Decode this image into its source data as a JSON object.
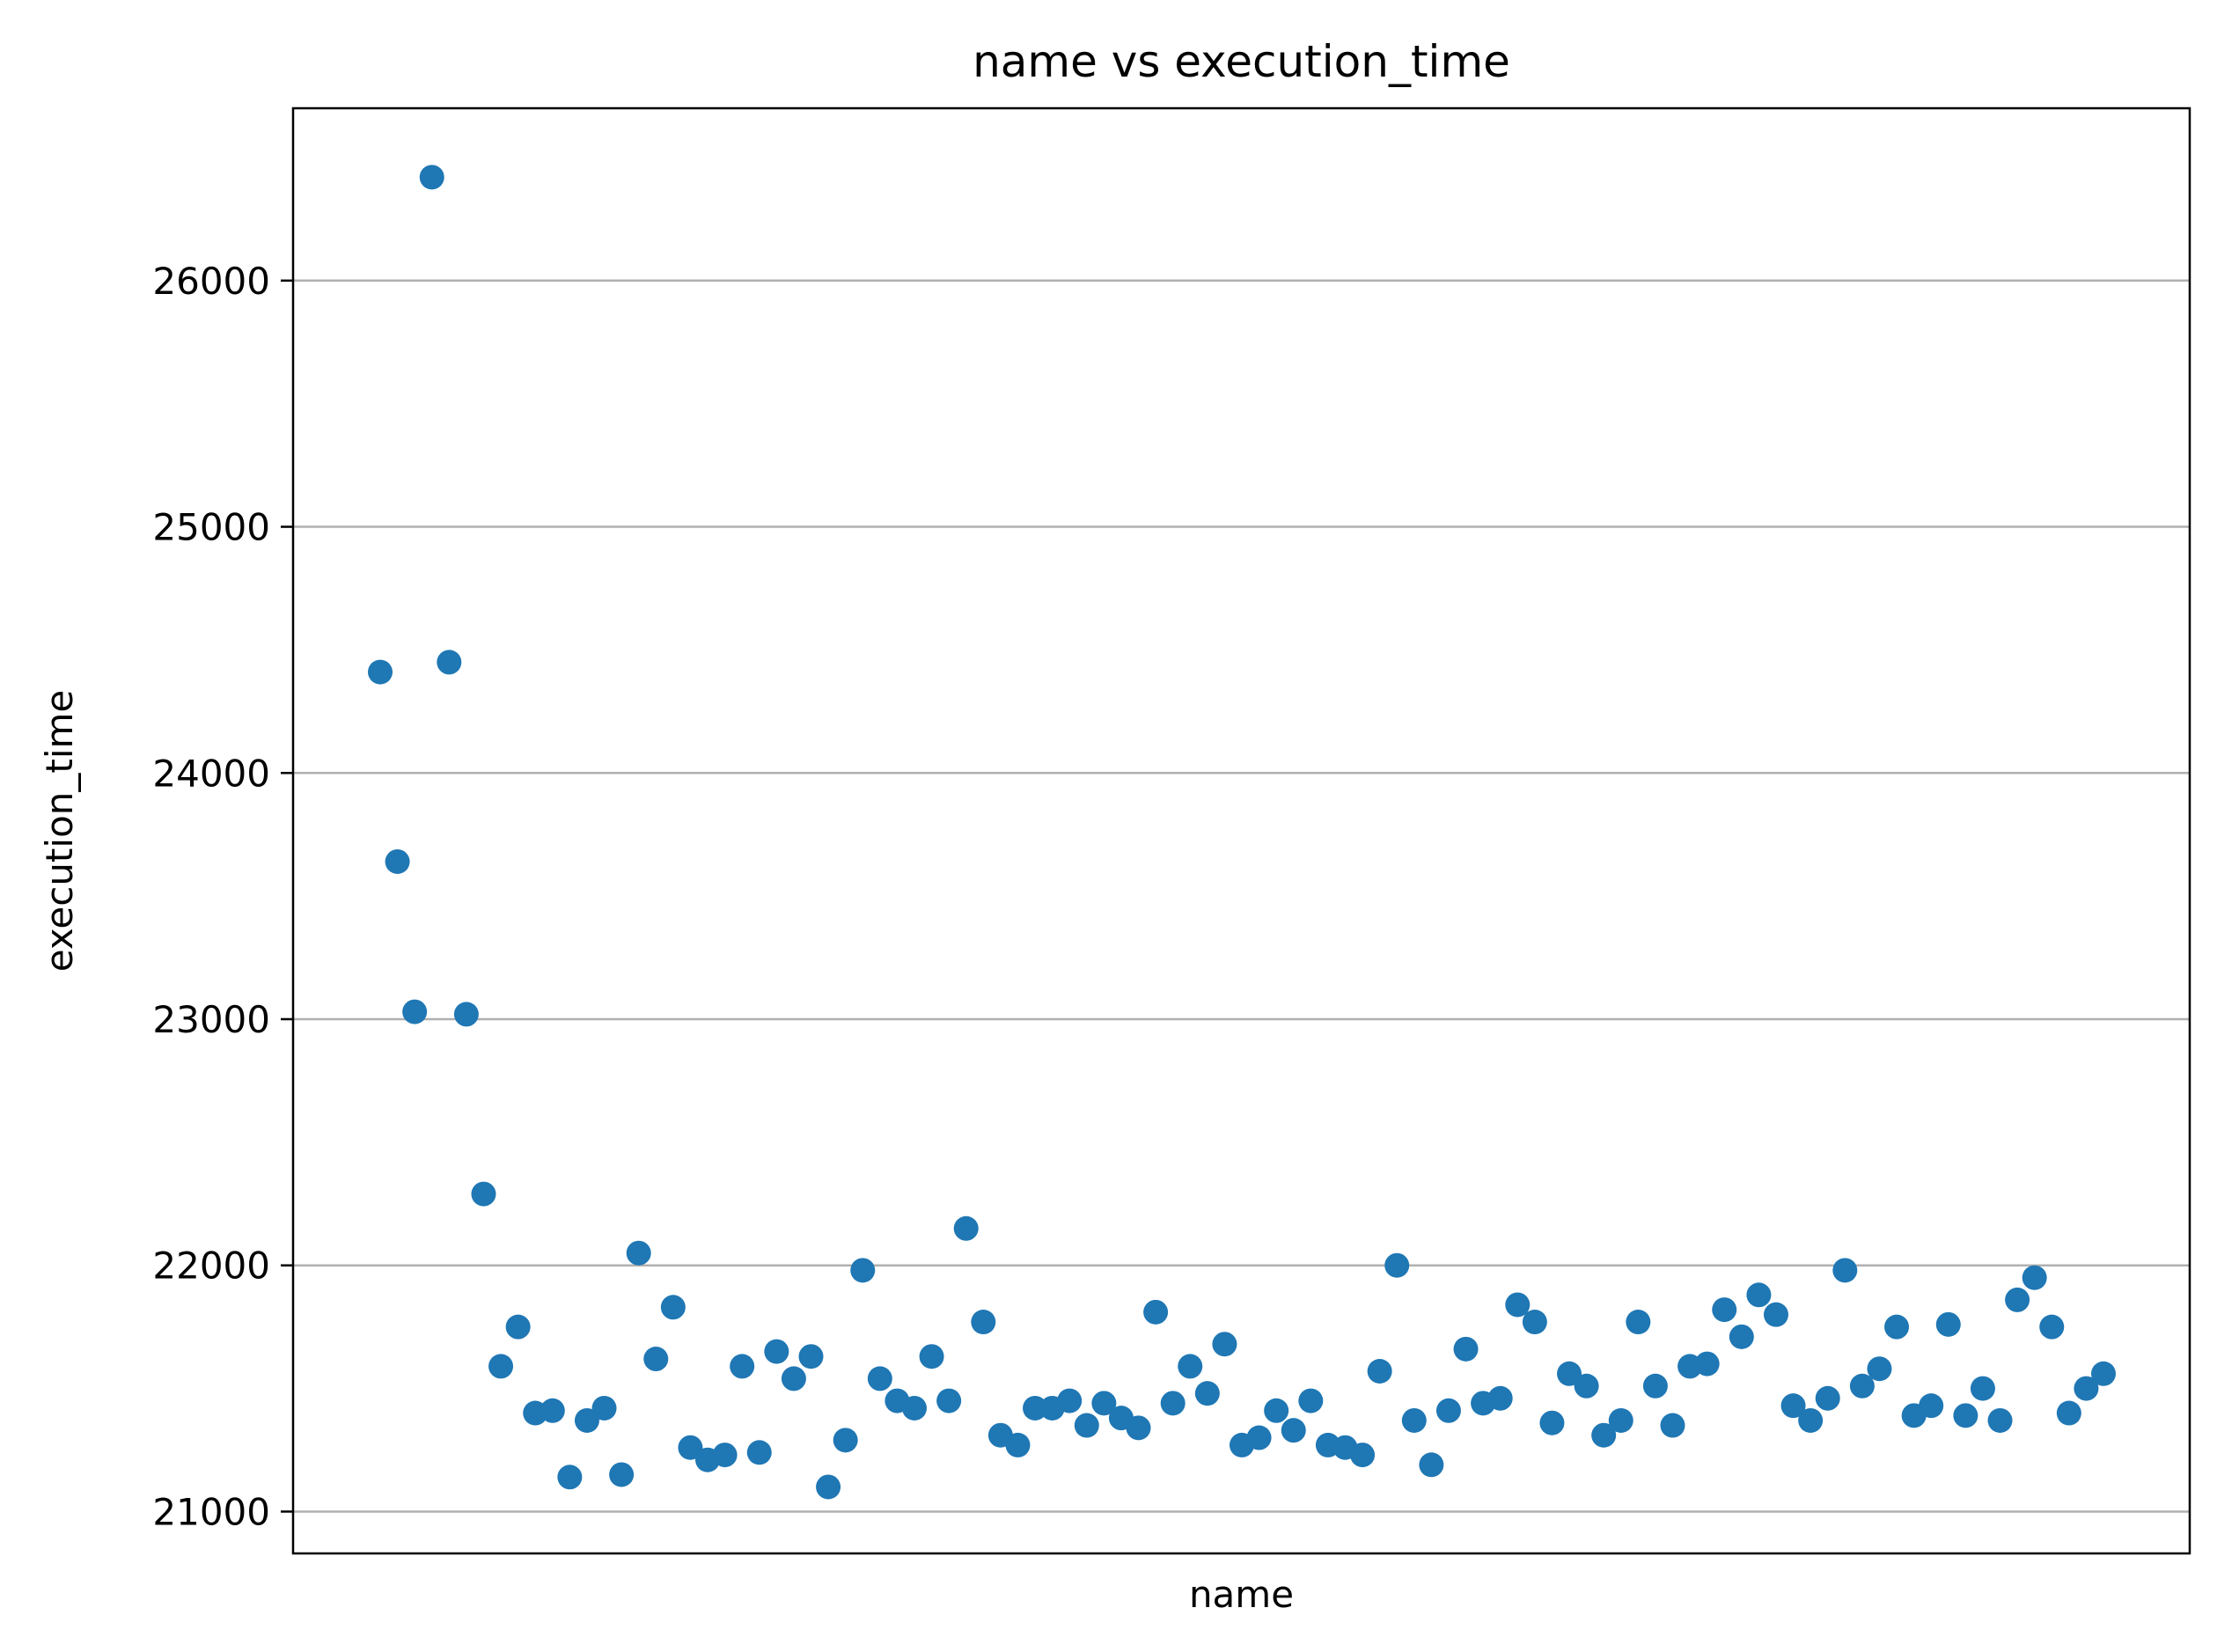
{
  "chart_data": {
    "type": "scatter",
    "title": "name vs execution_time",
    "xlabel": "name",
    "ylabel": "execution_time",
    "ylim": [
      20830,
      26700
    ],
    "yticks": [
      21000,
      22000,
      23000,
      24000,
      25000,
      26000
    ],
    "xticks": [],
    "grid": {
      "y": true,
      "x": false
    },
    "colors": {
      "marker": "#1f77b4",
      "grid": "#b0b0b0",
      "axes": "#000000"
    },
    "series": [
      {
        "values": [
          24410,
          23640,
          23030,
          26420,
          24450,
          23020,
          22290,
          21590,
          21750,
          21400,
          21410,
          21140,
          21370,
          21420,
          21150,
          22050,
          21620,
          21830,
          21260,
          21210,
          21230,
          21590,
          21240,
          21650,
          21540,
          21630,
          21100,
          21290,
          21980,
          21540,
          21450,
          21420,
          21630,
          21450,
          22150,
          21770,
          21310,
          21270,
          21420,
          21420,
          21450,
          21350,
          21440,
          21380,
          21340,
          21810,
          21440,
          21590,
          21480,
          21680,
          21270,
          21300,
          21410,
          21330,
          21450,
          21270,
          21260,
          21230,
          21570,
          22000,
          21370,
          21190,
          21410,
          21660,
          21440,
          21460,
          21840,
          21770,
          21360,
          21560,
          21510,
          21310,
          21370,
          21770,
          21510,
          21350,
          21590,
          21600,
          21820,
          21710,
          21880,
          21800,
          21430,
          21370,
          21460,
          21980,
          21510,
          21580,
          21750,
          21390,
          21430,
          21760,
          21390,
          21500,
          21370,
          21860,
          21950,
          21750,
          21400,
          21500,
          21560
        ]
      }
    ]
  }
}
